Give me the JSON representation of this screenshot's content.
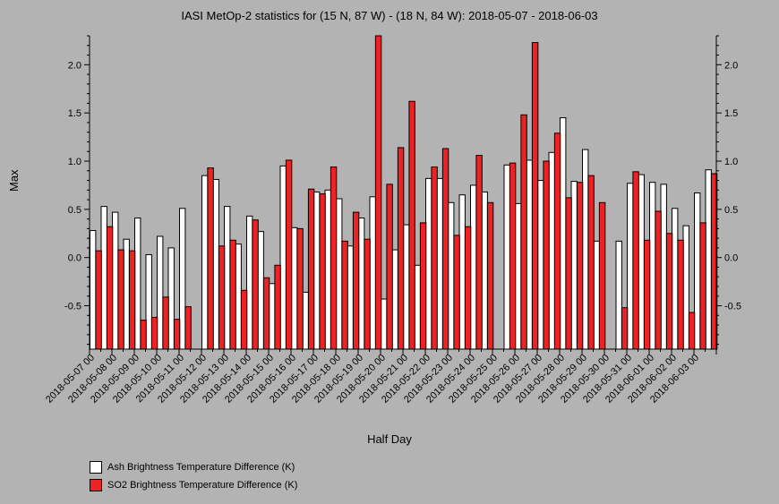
{
  "chart_data": {
    "type": "bar",
    "title": "IASI MetOp-2 statistics for (15 N, 87 W) - (18 N, 84 W): 2018-05-07 - 2018-06-03",
    "xlabel": "Half Day",
    "ylabel": "Max",
    "ylim": [
      -0.95,
      2.3
    ],
    "yticks": [
      -0.5,
      0.0,
      0.5,
      1.0,
      1.5,
      2.0
    ],
    "ytick_labels": [
      "-0.5",
      "0.0",
      "0.5",
      "1.0",
      "1.5",
      "2.0"
    ],
    "x_tick_labels": [
      "2018-05-07 00",
      "2018-05-08 00",
      "2018-05-09 00",
      "2018-05-10 00",
      "2018-05-11 00",
      "2018-05-12 00",
      "2018-05-13 00",
      "2018-05-14 00",
      "2018-05-15 00",
      "2018-05-16 00",
      "2018-05-17 00",
      "2018-05-18 00",
      "2018-05-19 00",
      "2018-05-20 00",
      "2018-05-21 00",
      "2018-05-22 00",
      "2018-05-23 00",
      "2018-05-24 00",
      "2018-05-25 00",
      "2018-05-26 00",
      "2018-05-27 00",
      "2018-05-28 00",
      "2018-05-29 00",
      "2018-05-30 00",
      "2018-05-31 00",
      "2018-06-01 00",
      "2018-06-02 00",
      "2018-06-03 00"
    ],
    "legend_position": "bottom-left",
    "series": [
      {
        "name": "Ash Brightness Temperature Difference (K)",
        "color": "#ffffff",
        "values": [
          0.28,
          0.53,
          0.47,
          0.19,
          0.41,
          0.03,
          0.22,
          0.1,
          0.51,
          null,
          0.85,
          0.81,
          0.53,
          0.14,
          0.43,
          0.27,
          -0.27,
          0.95,
          0.31,
          -0.36,
          0.68,
          0.7,
          0.61,
          0.12,
          0.41,
          0.63,
          -0.43,
          0.08,
          0.34,
          -0.08,
          0.82,
          0.82,
          0.57,
          0.65,
          0.75,
          0.68,
          null,
          0.96,
          0.56,
          1.01,
          0.8,
          1.09,
          1.45,
          0.79,
          1.12,
          0.17,
          null,
          0.17,
          0.77,
          0.86,
          0.78,
          0.76,
          0.51,
          0.33,
          0.67,
          0.91
        ]
      },
      {
        "name": "SO2 Brightness Temperature Difference (K)",
        "color": "#ee2222",
        "values": [
          0.07,
          0.32,
          0.08,
          0.07,
          -0.65,
          -0.62,
          -0.41,
          -0.64,
          -0.51,
          null,
          0.93,
          0.12,
          0.18,
          -0.34,
          0.39,
          -0.21,
          -0.08,
          1.01,
          0.3,
          0.71,
          0.66,
          0.94,
          0.17,
          0.47,
          0.19,
          2.3,
          0.76,
          1.14,
          1.62,
          0.36,
          0.94,
          1.13,
          0.23,
          0.32,
          1.06,
          0.57,
          null,
          0.98,
          1.48,
          2.23,
          1.0,
          1.29,
          0.62,
          0.78,
          0.85,
          0.57,
          null,
          -0.52,
          0.89,
          0.18,
          0.48,
          0.25,
          0.18,
          -0.57,
          0.36,
          0.87
        ]
      }
    ]
  }
}
